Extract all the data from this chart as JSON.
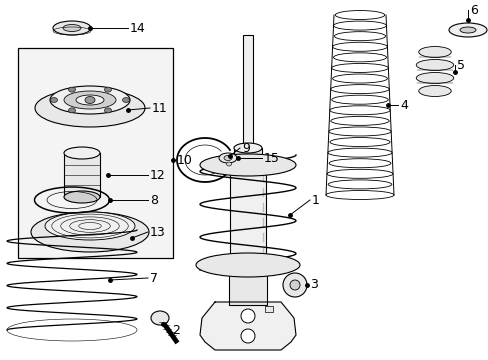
{
  "bg_color": "#ffffff",
  "fig_width": 4.89,
  "fig_height": 3.6,
  "dpi": 100,
  "line_color": "#000000",
  "text_color": "#000000",
  "font_size": 9
}
